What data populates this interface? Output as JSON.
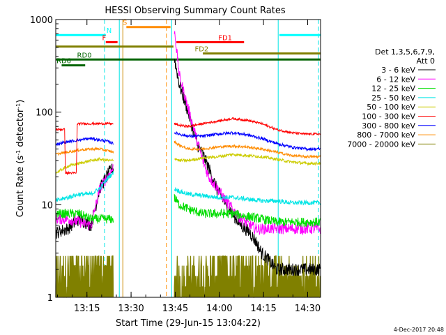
{
  "chart_data": {
    "type": "line",
    "title": "HESSI Observing Summary Count Rates",
    "xlabel": "Start Time (29-Jun-15 13:04:22)",
    "ylabel": "Count Rate (s",
    "ylabel_sup": "-1",
    "ylabel_rest": " detector",
    "ylabel_sup2": "-1",
    "ylabel_end": ")",
    "y_scale": "log",
    "ylim": [
      1,
      1000
    ],
    "xlim_minutes": [
      0,
      90
    ],
    "x_ticks": [
      {
        "label": "13:15",
        "value": 10.6
      },
      {
        "label": "13:30",
        "value": 25.6
      },
      {
        "label": "13:45",
        "value": 40.6
      },
      {
        "label": "14:00",
        "value": 55.6
      },
      {
        "label": "14:15",
        "value": 70.6
      },
      {
        "label": "14:30",
        "value": 85.6
      }
    ],
    "y_ticks": [
      {
        "label": "1",
        "value": 1
      },
      {
        "label": "10",
        "value": 10
      },
      {
        "label": "100",
        "value": 100
      },
      {
        "label": "1000",
        "value": 1000
      }
    ],
    "legend_title": "Det 1,3,5,6,7,9,",
    "legend_subtitle": "Att 0",
    "legend_placement": "right",
    "timestamp": "4-Dec-2017 20:48",
    "series": [
      {
        "name": "3 - 6 keV",
        "color": "#000000",
        "kind": "black",
        "points": [
          [
            0,
            5
          ],
          [
            4,
            5.5
          ],
          [
            8,
            7
          ],
          [
            12,
            6
          ],
          [
            15,
            15
          ],
          [
            18,
            22
          ],
          [
            19.6,
            25
          ],
          [
            20,
            0
          ],
          [
            38,
            0
          ],
          [
            40.2,
            400
          ],
          [
            42,
            200
          ],
          [
            45,
            100
          ],
          [
            48,
            45
          ],
          [
            50,
            35
          ],
          [
            52,
            25
          ],
          [
            55,
            14
          ],
          [
            58,
            10
          ],
          [
            60,
            8
          ],
          [
            63,
            6
          ],
          [
            66,
            5
          ],
          [
            68,
            4
          ],
          [
            70,
            3
          ],
          [
            72,
            2.6
          ],
          [
            75,
            2
          ],
          [
            78,
            2
          ],
          [
            80,
            2
          ],
          [
            85,
            2
          ],
          [
            90,
            2
          ]
        ]
      },
      {
        "name": "6 - 12 keV",
        "color": "#ff00ff",
        "kind": "magenta",
        "points": [
          [
            0,
            7
          ],
          [
            4,
            7
          ],
          [
            8,
            6.5
          ],
          [
            12,
            6
          ],
          [
            15,
            15
          ],
          [
            18,
            21
          ],
          [
            19.6,
            25
          ],
          [
            20,
            0
          ],
          [
            38,
            0
          ],
          [
            40.2,
            850
          ],
          [
            42,
            250
          ],
          [
            45,
            110
          ],
          [
            48,
            50
          ],
          [
            50,
            30
          ],
          [
            52,
            20
          ],
          [
            55,
            15
          ],
          [
            57,
            12
          ],
          [
            60,
            9
          ],
          [
            63,
            7
          ],
          [
            66,
            6
          ],
          [
            68,
            5.5
          ],
          [
            70,
            5.5
          ],
          [
            75,
            5.5
          ],
          [
            80,
            5.5
          ],
          [
            85,
            5.5
          ],
          [
            90,
            5.5
          ]
        ]
      },
      {
        "name": "12 - 25 keV",
        "color": "#00dd00",
        "kind": "green",
        "points": [
          [
            0,
            8
          ],
          [
            4,
            8
          ],
          [
            8,
            8
          ],
          [
            12,
            7
          ],
          [
            15,
            7
          ],
          [
            18,
            7
          ],
          [
            19.6,
            7
          ],
          [
            20,
            0
          ],
          [
            38,
            0
          ],
          [
            40.2,
            12
          ],
          [
            42,
            10
          ],
          [
            45,
            9
          ],
          [
            50,
            8
          ],
          [
            55,
            8
          ],
          [
            60,
            8
          ],
          [
            65,
            7.5
          ],
          [
            70,
            7
          ],
          [
            75,
            6.5
          ],
          [
            80,
            6.5
          ],
          [
            85,
            6.5
          ],
          [
            90,
            6.5
          ]
        ]
      },
      {
        "name": "25 - 50 keV",
        "color": "#00e5e5",
        "kind": "cyan",
        "points": [
          [
            0,
            11
          ],
          [
            4,
            12
          ],
          [
            8,
            13
          ],
          [
            12,
            13
          ],
          [
            15,
            15
          ],
          [
            18,
            20
          ],
          [
            19.6,
            22
          ],
          [
            20,
            0
          ],
          [
            38,
            0
          ],
          [
            40.2,
            15
          ],
          [
            42,
            14
          ],
          [
            45,
            13
          ],
          [
            50,
            12.5
          ],
          [
            55,
            12
          ],
          [
            60,
            12
          ],
          [
            65,
            11.5
          ],
          [
            70,
            11
          ],
          [
            75,
            11
          ],
          [
            80,
            10.5
          ],
          [
            85,
            10.5
          ],
          [
            90,
            10.5
          ]
        ]
      },
      {
        "name": "50 - 100 keV",
        "color": "#cccc00",
        "kind": "yellow",
        "points": [
          [
            0,
            22
          ],
          [
            4,
            26
          ],
          [
            8,
            28
          ],
          [
            12,
            30
          ],
          [
            15,
            31
          ],
          [
            18,
            30
          ],
          [
            19.6,
            30
          ],
          [
            20,
            0
          ],
          [
            38,
            0
          ],
          [
            40.2,
            32
          ],
          [
            42,
            30
          ],
          [
            45,
            30
          ],
          [
            50,
            32
          ],
          [
            55,
            33
          ],
          [
            60,
            35
          ],
          [
            65,
            34
          ],
          [
            70,
            33
          ],
          [
            75,
            31
          ],
          [
            80,
            29
          ],
          [
            85,
            28
          ],
          [
            90,
            28
          ]
        ]
      },
      {
        "name": "100 - 300 keV",
        "color": "#ff0000",
        "kind": "red",
        "points": [
          [
            0,
            65
          ],
          [
            3,
            65
          ],
          [
            3.3,
            22
          ],
          [
            7,
            22
          ],
          [
            7.3,
            75
          ],
          [
            12,
            75
          ],
          [
            15,
            75
          ],
          [
            18,
            75
          ],
          [
            19.6,
            75
          ],
          [
            20,
            0
          ],
          [
            38,
            0
          ],
          [
            40.2,
            75
          ],
          [
            42,
            72
          ],
          [
            45,
            70
          ],
          [
            50,
            75
          ],
          [
            55,
            80
          ],
          [
            60,
            85
          ],
          [
            65,
            82
          ],
          [
            70,
            75
          ],
          [
            75,
            65
          ],
          [
            80,
            60
          ],
          [
            85,
            58
          ],
          [
            90,
            58
          ]
        ]
      },
      {
        "name": "300 - 800 keV",
        "color": "#0000ff",
        "kind": "blue",
        "points": [
          [
            0,
            45
          ],
          [
            4,
            48
          ],
          [
            8,
            50
          ],
          [
            12,
            52
          ],
          [
            15,
            50
          ],
          [
            18,
            48
          ],
          [
            19.6,
            46
          ],
          [
            20,
            0
          ],
          [
            38,
            0
          ],
          [
            40.2,
            60
          ],
          [
            42,
            58
          ],
          [
            45,
            55
          ],
          [
            50,
            55
          ],
          [
            55,
            58
          ],
          [
            60,
            60
          ],
          [
            65,
            57
          ],
          [
            70,
            52
          ],
          [
            75,
            46
          ],
          [
            80,
            42
          ],
          [
            85,
            40
          ],
          [
            90,
            40
          ]
        ]
      },
      {
        "name": "800 - 7000 keV",
        "color": "#ff8c00",
        "kind": "orange",
        "points": [
          [
            0,
            35
          ],
          [
            4,
            37
          ],
          [
            8,
            39
          ],
          [
            12,
            40
          ],
          [
            15,
            40
          ],
          [
            18,
            38
          ],
          [
            19.6,
            37
          ],
          [
            20,
            0
          ],
          [
            38,
            0
          ],
          [
            40.2,
            48
          ],
          [
            42,
            44
          ],
          [
            45,
            40
          ],
          [
            50,
            40
          ],
          [
            55,
            42
          ],
          [
            60,
            43
          ],
          [
            65,
            42
          ],
          [
            70,
            40
          ],
          [
            75,
            37
          ],
          [
            80,
            34
          ],
          [
            85,
            33
          ],
          [
            90,
            33
          ]
        ]
      },
      {
        "name": "7000 - 20000 keV",
        "color": "#808000",
        "kind": "olive",
        "points": [
          [
            0,
            1.8
          ],
          [
            5,
            2
          ],
          [
            10,
            2.2
          ],
          [
            15,
            2.2
          ],
          [
            19.6,
            2.2
          ],
          [
            20,
            0
          ],
          [
            38,
            0
          ],
          [
            40.2,
            1.5
          ],
          [
            45,
            1.6
          ],
          [
            50,
            1.8
          ],
          [
            55,
            2
          ],
          [
            60,
            2.4
          ],
          [
            65,
            2.6
          ],
          [
            70,
            2.2
          ],
          [
            75,
            1.8
          ],
          [
            80,
            1.6
          ],
          [
            85,
            1.5
          ],
          [
            90,
            1.5
          ]
        ]
      }
    ],
    "flags": [
      {
        "label": "N",
        "color": "#00ffff",
        "start": 0,
        "end": 17,
        "y": 680,
        "label_at": 17
      },
      {
        "label": "S",
        "color": "#ff8c00",
        "start": 24,
        "end": 39,
        "y": 830,
        "label_at": 22.5
      },
      {
        "label": "F",
        "color": "#ff0000",
        "start": 17,
        "end": 21,
        "y": 570,
        "label_at": 15.5
      },
      {
        "label": "FD1",
        "color": "#ff0000",
        "start": 41,
        "end": 64,
        "y": 570,
        "label_at": 55
      },
      {
        "label": "FD2",
        "color": "#808000",
        "start": 50,
        "end": 90,
        "y": 430,
        "label_at": 47
      },
      {
        "label": "RD0",
        "color": "#006400",
        "start": 0,
        "end": 90,
        "y": 370,
        "label_at": 7
      },
      {
        "label": "RD6",
        "color": "#006400",
        "start": 2,
        "end": 10,
        "y": 320,
        "label_at": 0
      },
      {
        "label": "",
        "color": "#808000",
        "start": 0,
        "end": 40,
        "y": 510,
        "label_at": 0
      },
      {
        "label": "",
        "color": "#00ffff",
        "start": 76,
        "end": 90,
        "y": 680,
        "label_at": 0
      }
    ],
    "vlines": [
      {
        "x": 0,
        "color": "#00e5e5",
        "dash": false
      },
      {
        "x": 16.6,
        "color": "#00e5e5",
        "dash": true
      },
      {
        "x": 21.6,
        "color": "#00e5e5",
        "dash": false
      },
      {
        "x": 22.8,
        "color": "#cc8800",
        "dash": false
      },
      {
        "x": 37.6,
        "color": "#ff8c00",
        "dash": true
      },
      {
        "x": 39.4,
        "color": "#00e5e5",
        "dash": false
      },
      {
        "x": 75.6,
        "color": "#00e5e5",
        "dash": false
      },
      {
        "x": 89.3,
        "color": "#00e5e5",
        "dash": true
      }
    ]
  }
}
